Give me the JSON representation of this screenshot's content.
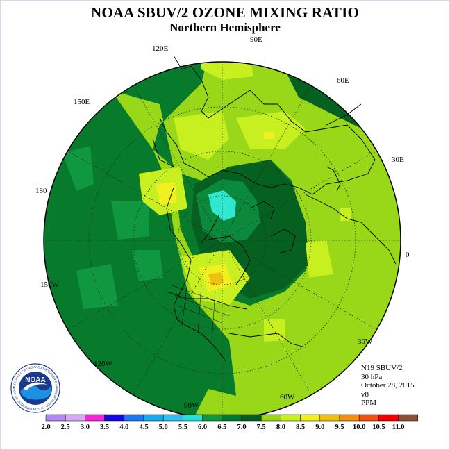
{
  "title": "NOAA SBUV/2 OZONE MIXING RATIO",
  "subtitle": "Northern Hemisphere",
  "longitude_labels": [
    "90E",
    "60E",
    "30E",
    "0",
    "30W",
    "60W",
    "90W",
    "120W",
    "150W",
    "180",
    "150E",
    "120E"
  ],
  "info": {
    "instrument": "N19 SBUV/2",
    "level": "30 hPa",
    "date": "October 28, 2015",
    "version": "v8",
    "units": "PPM"
  },
  "logo": {
    "name": "NOAA",
    "ring_text": "NATIONAL OCEANIC AND ATMOSPHERIC ADMINISTRATION · U.S. DEPARTMENT OF COMMERCE"
  },
  "colorbar": {
    "labels": [
      "2.0",
      "2.5",
      "3.0",
      "3.5",
      "4.0",
      "4.5",
      "5.0",
      "5.5",
      "6.0",
      "6.5",
      "7.0",
      "7.5",
      "8.0",
      "8.5",
      "9.0",
      "9.5",
      "10.0",
      "10.5",
      "11.0"
    ],
    "colors": [
      "#b088f0",
      "#d8a8f0",
      "#f028d8",
      "#1808e0",
      "#1878f0",
      "#18a8f0",
      "#30c0f0",
      "#28e0d8",
      "#109840",
      "#007830",
      "#085c20",
      "#98d818",
      "#c8f020",
      "#f0f020",
      "#f0c010",
      "#f09010",
      "#f05010",
      "#f00000",
      "#885038"
    ]
  }
}
